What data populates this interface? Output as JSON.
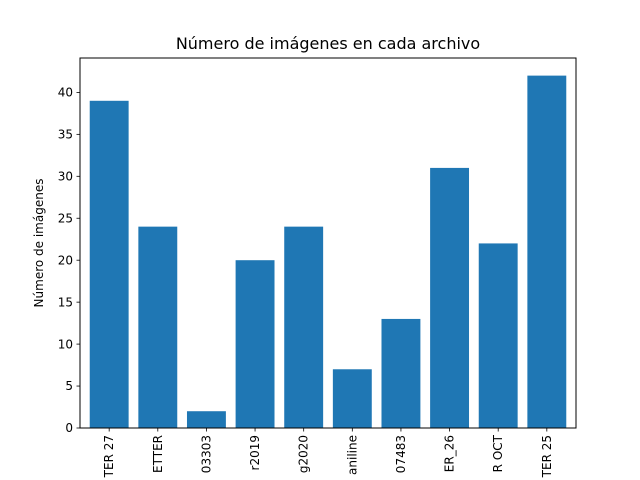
{
  "chart_data": {
    "type": "bar",
    "title": "Número de imágenes en cada archivo",
    "xlabel": "",
    "ylabel": "Número de imágenes",
    "categories": [
      "TER 27",
      "ETTER",
      "03303",
      "r2019",
      "g2020",
      "aniline",
      "07483",
      "ER_26",
      "R OCT",
      "TER 25"
    ],
    "values": [
      39,
      24,
      2,
      20,
      24,
      7,
      13,
      31,
      22,
      42
    ],
    "ylim": [
      0,
      44.1
    ],
    "yticks": [
      0,
      5,
      10,
      15,
      20,
      25,
      30,
      35,
      40
    ],
    "grid": false,
    "bar_color": "#1f77b4"
  }
}
